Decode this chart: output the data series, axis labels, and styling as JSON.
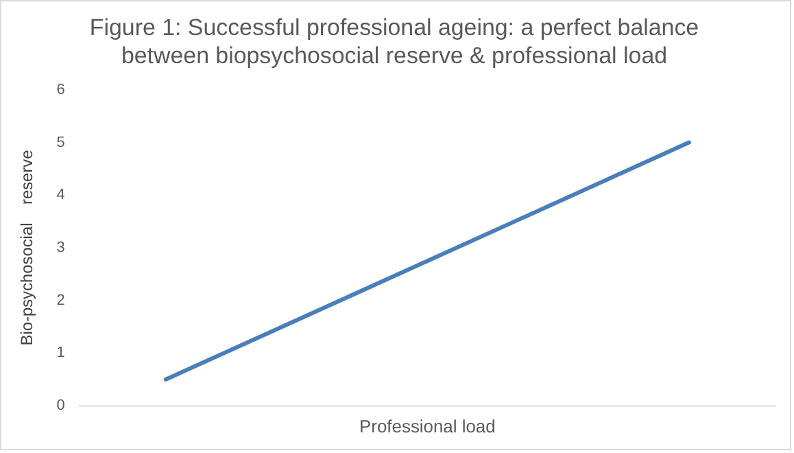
{
  "chart_data": {
    "type": "line",
    "title": [
      "Figure 1: Successful professional ageing: a perfect balance",
      "between biopsychosocial reserve & professional load"
    ],
    "xlabel": "Professional load",
    "ylabel": "Bio-psychosocial    reserve",
    "categories": [
      null,
      null,
      null,
      null
    ],
    "series": [
      {
        "color": "#4a7ebb",
        "values": [
          0.5,
          2,
          3.5,
          5
        ]
      }
    ],
    "ylim": [
      0,
      6
    ],
    "yticks": [
      0,
      1,
      2,
      3,
      4,
      5,
      6
    ],
    "grid": false,
    "legend": false,
    "marker": "none",
    "line_style": "solid"
  }
}
